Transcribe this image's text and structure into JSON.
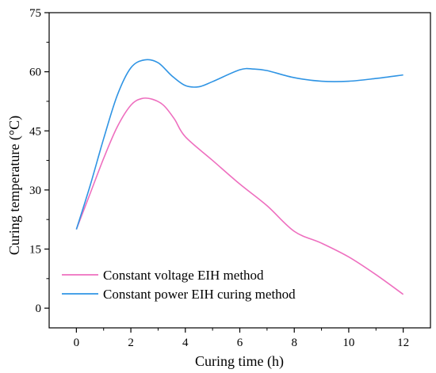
{
  "chart_data": {
    "type": "line",
    "title": "",
    "xlabel": "Curing time (h)",
    "ylabel": "Curing temperature (°C)",
    "xlim": [
      -1,
      13
    ],
    "ylim": [
      -5,
      75
    ],
    "xticks": [
      0,
      2,
      4,
      6,
      8,
      10,
      12
    ],
    "yticks": [
      0,
      15,
      30,
      45,
      60,
      75
    ],
    "grid": false,
    "legend_position": "bottom-left",
    "series": [
      {
        "name": "Constant voltage EIH method",
        "color": "#ee6fbf",
        "x": [
          0,
          0.5,
          1,
          1.5,
          2,
          2.4,
          2.8,
          3.2,
          3.6,
          4,
          5,
          6,
          7,
          8,
          9,
          10,
          11,
          12
        ],
        "y": [
          20,
          29,
          38,
          46,
          51.5,
          53.2,
          53,
          51.5,
          48,
          43.5,
          37.5,
          31.5,
          26,
          19.5,
          16.5,
          13,
          8.5,
          3.5
        ]
      },
      {
        "name": "Constant power EIH curing method",
        "color": "#2f94e4",
        "x": [
          0,
          0.5,
          1,
          1.5,
          2,
          2.5,
          3,
          3.5,
          4,
          4.5,
          5,
          6,
          6.5,
          7,
          8,
          9,
          10,
          11,
          12
        ],
        "y": [
          20,
          31,
          43,
          54,
          61,
          63,
          62.3,
          59,
          56.5,
          56.2,
          57.5,
          60.5,
          60.7,
          60.3,
          58.5,
          57.6,
          57.6,
          58.3,
          59.2
        ]
      }
    ]
  }
}
